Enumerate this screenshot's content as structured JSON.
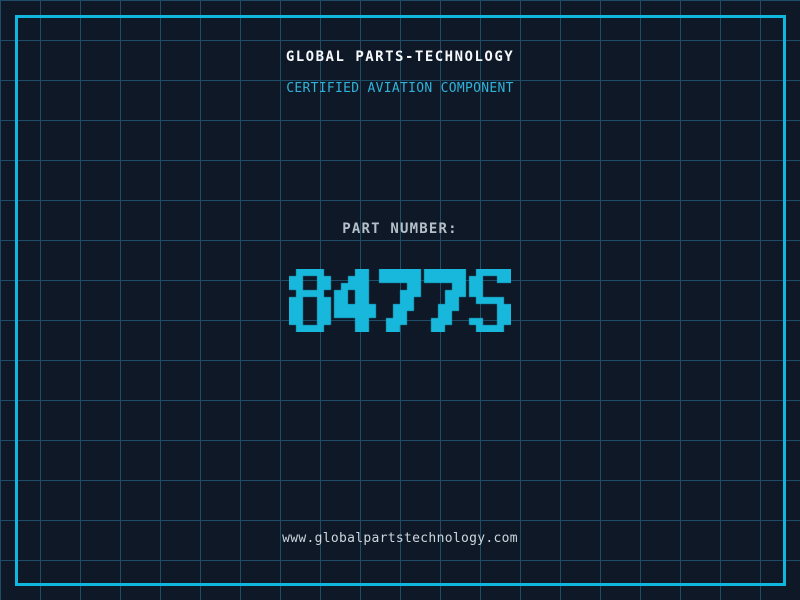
{
  "header": {
    "title": "GLOBAL PARTS-TECHNOLOGY",
    "subtitle": "CERTIFIED AVIATION COMPONENT"
  },
  "part": {
    "label": "PART NUMBER:",
    "number": "8477S"
  },
  "footer": {
    "url": "www.globalpartstechnology.com"
  },
  "colors": {
    "background": "#0e1827",
    "grid_line": "#1d4d68",
    "frame": "#0fb6dd",
    "title_color": "#f5f8fa",
    "subtitle_color": "#2fb3d9",
    "label_color": "#b3bfc9",
    "part_number": "#17b8dc",
    "url_color": "#cbd6dd"
  }
}
